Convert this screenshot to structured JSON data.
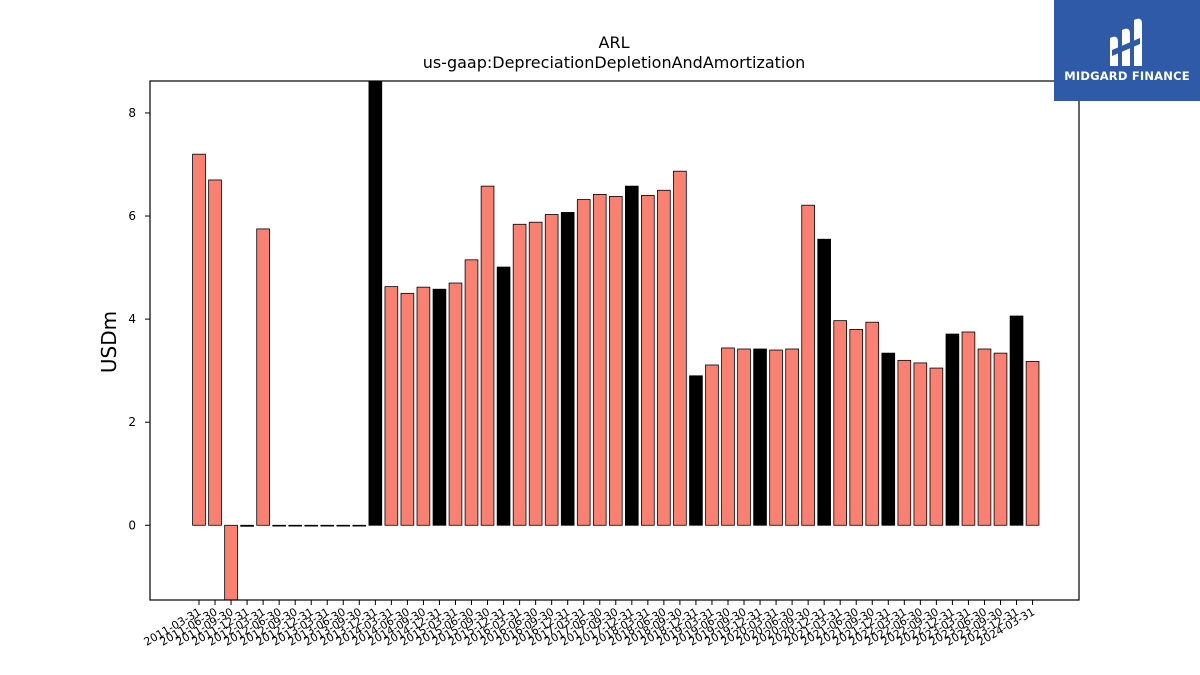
{
  "chart_data": {
    "type": "bar",
    "title": "ARL",
    "subtitle": "us-gaap:DepreciationDepletionAndAmortization",
    "xlabel": "",
    "ylabel": "USDm",
    "ylim": [
      -1.45,
      8.62
    ],
    "yticks": [
      0,
      2,
      4,
      6,
      8
    ],
    "grid": false,
    "categories": [
      "2011-03-31",
      "2011-06-30",
      "2011-09-30",
      "2011-12-31",
      "2012-03-31",
      "2012-06-30",
      "2012-09-30",
      "2012-12-31",
      "2013-03-31",
      "2013-06-30",
      "2013-09-30",
      "2013-12-31",
      "2014-03-31",
      "2014-06-30",
      "2014-09-30",
      "2014-12-31",
      "2015-03-31",
      "2015-06-30",
      "2015-09-30",
      "2015-12-31",
      "2016-03-31",
      "2016-06-30",
      "2016-09-30",
      "2016-12-31",
      "2017-03-31",
      "2017-06-30",
      "2017-09-30",
      "2017-12-31",
      "2018-03-31",
      "2018-06-30",
      "2018-09-30",
      "2018-12-31",
      "2019-03-31",
      "2019-06-30",
      "2019-09-30",
      "2019-12-31",
      "2020-03-31",
      "2020-06-30",
      "2020-09-30",
      "2020-12-31",
      "2021-03-31",
      "2021-06-30",
      "2021-09-30",
      "2021-12-31",
      "2022-03-31",
      "2022-06-30",
      "2022-09-30",
      "2022-12-31",
      "2023-03-31",
      "2023-06-30",
      "2023-09-30",
      "2023-12-31",
      "2024-03-31"
    ],
    "values": [
      7.2,
      6.7,
      -1.6,
      -0.02,
      5.75,
      0,
      0,
      0,
      0,
      0,
      0,
      8.9,
      4.63,
      4.5,
      4.62,
      4.58,
      4.7,
      5.15,
      6.58,
      5.01,
      5.84,
      5.88,
      6.03,
      6.07,
      6.32,
      6.42,
      6.38,
      6.58,
      6.4,
      6.5,
      6.87,
      2.9,
      3.11,
      3.44,
      3.42,
      3.42,
      3.4,
      3.42,
      6.21,
      5.55,
      3.97,
      3.8,
      3.94,
      3.34,
      3.2,
      3.15,
      3.05,
      3.71,
      3.75,
      3.42,
      3.34,
      4.06,
      3.18
    ],
    "bar_colors": [
      "salmon",
      "salmon",
      "salmon",
      "black",
      "salmon",
      "salmon",
      "salmon",
      "salmon",
      "salmon",
      "salmon",
      "salmon",
      "black",
      "salmon",
      "salmon",
      "salmon",
      "black",
      "salmon",
      "salmon",
      "salmon",
      "black",
      "salmon",
      "salmon",
      "salmon",
      "black",
      "salmon",
      "salmon",
      "salmon",
      "black",
      "salmon",
      "salmon",
      "salmon",
      "black",
      "salmon",
      "salmon",
      "salmon",
      "black",
      "salmon",
      "salmon",
      "salmon",
      "black",
      "salmon",
      "salmon",
      "salmon",
      "black",
      "salmon",
      "salmon",
      "salmon",
      "black",
      "salmon",
      "salmon",
      "salmon",
      "black",
      "salmon"
    ],
    "colors": {
      "salmon": "#fa8072",
      "black": "#000000"
    }
  },
  "logo": {
    "text": "MIDGARD FINANCE",
    "background": "#2f5aa8"
  }
}
